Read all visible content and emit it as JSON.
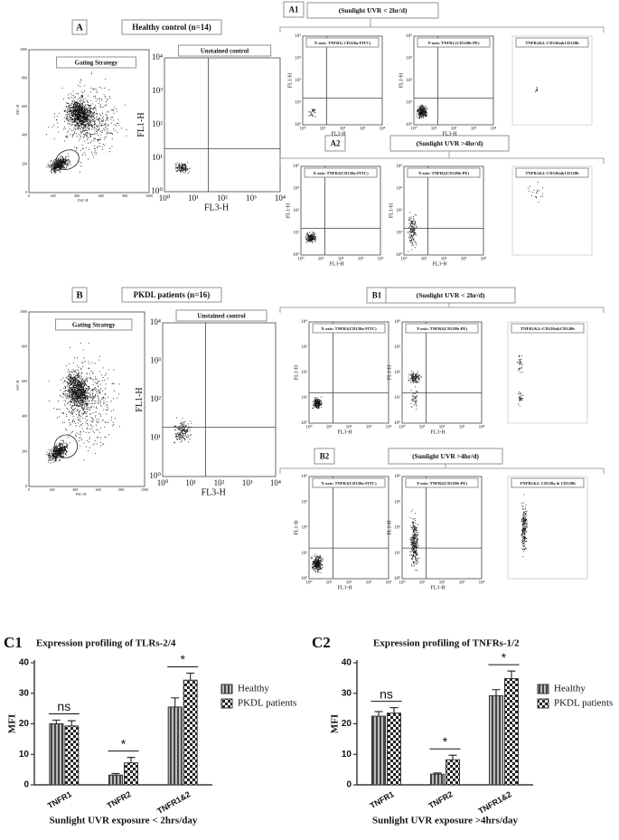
{
  "sections": [
    {
      "label": "A",
      "title": "Healthy control (n=14)",
      "gating": "Gating Strategy",
      "unstained": "Unstained control",
      "rows": [
        {
          "label": "A1",
          "title": "(Sunlight UVR < 2hr/d)",
          "plots": [
            "X-axis: TNFR1( CD120a-FITC)",
            "Y-axis: TNFR2 (CD120b-PE)",
            "TNFR1&2: CD120a&CD120b"
          ]
        },
        {
          "label": "A2",
          "title": "(Sunlight UVR >4hr/d)",
          "plots": [
            "X-axis: TNFR1(CD120a-FITC)",
            "Y-axis: TNFR2(CD120b-PE)",
            "TNFR1&2: CD120a&CD120b"
          ]
        }
      ]
    },
    {
      "label": "B",
      "title": "PKDL patients  (n=16)",
      "gating": "Gating Strategy",
      "unstained": "Unstained control",
      "rows": [
        {
          "label": "B1",
          "title": "(Sunlight UVR < 2hr/d)",
          "plots": [
            "X-axis: TNFR1(CD120a-FITC)",
            "Y-axis: TNFR2(CD120b-PE)",
            "TNFR1&2::CD120a&CD120b"
          ]
        },
        {
          "label": "B2",
          "title": "(Sunlight UVR >4hr/d)",
          "plots": [
            "X-axis: TNFR1(CD120a-FITC)",
            "Y-axis: TNFR2(CD120b-PE)",
            "TNFR1&2: CD120a & CD120b"
          ]
        }
      ]
    }
  ],
  "flow_axes": {
    "y": "FL1-H",
    "x": "FL3-H",
    "log_ticks": [
      "10⁰",
      "10¹",
      "10²",
      "10³",
      "10⁴"
    ],
    "ssc": "SSC-H",
    "fsc": "FSC-H",
    "lin_ticks": [
      "0",
      "200",
      "400",
      "600",
      "800",
      "1000"
    ]
  },
  "chart_data": [
    {
      "type": "bar",
      "panel": "C1",
      "title": "Expression profiling of TLRs-2/4",
      "x_label": "Sunlight UVR exposure < 2hrs/day",
      "y_label": "MFI",
      "categories": [
        "TNFR1",
        "TNFR2",
        "TNFR1&2"
      ],
      "series": [
        {
          "name": "Healthy",
          "color": "#333333",
          "values": [
            20,
            3.2,
            25.5
          ],
          "errors": [
            1.2,
            0.5,
            3
          ]
        },
        {
          "name": "PKDL patients",
          "color": "#333333",
          "values": [
            19.3,
            7.2,
            34.3
          ],
          "errors": [
            1.7,
            1.8,
            2.3
          ]
        }
      ],
      "annotations": [
        "ns",
        "*",
        "*"
      ],
      "ylim": [
        0,
        40
      ],
      "yticks": [
        0,
        10,
        20,
        30,
        40
      ]
    },
    {
      "type": "bar",
      "panel": "C2",
      "title": "Expression profiling of TNFRs-1/2",
      "x_label": "Sunlight UVR exposure >4hrs/day",
      "y_label": "MFI",
      "categories": [
        "TNFR1",
        "TNFR2",
        "TNFR1&2"
      ],
      "series": [
        {
          "name": "Healthy",
          "color": "#333333",
          "values": [
            22.5,
            3.5,
            29.2
          ],
          "errors": [
            1.5,
            0.4,
            2
          ]
        },
        {
          "name": "PKDL patients",
          "color": "#333333",
          "values": [
            23.5,
            8.2,
            34.8
          ],
          "errors": [
            1.8,
            1.5,
            2.5
          ]
        }
      ],
      "annotations": [
        "ns",
        "*",
        "*"
      ],
      "ylim": [
        0,
        40
      ],
      "yticks": [
        0,
        10,
        20,
        30,
        40
      ]
    }
  ]
}
